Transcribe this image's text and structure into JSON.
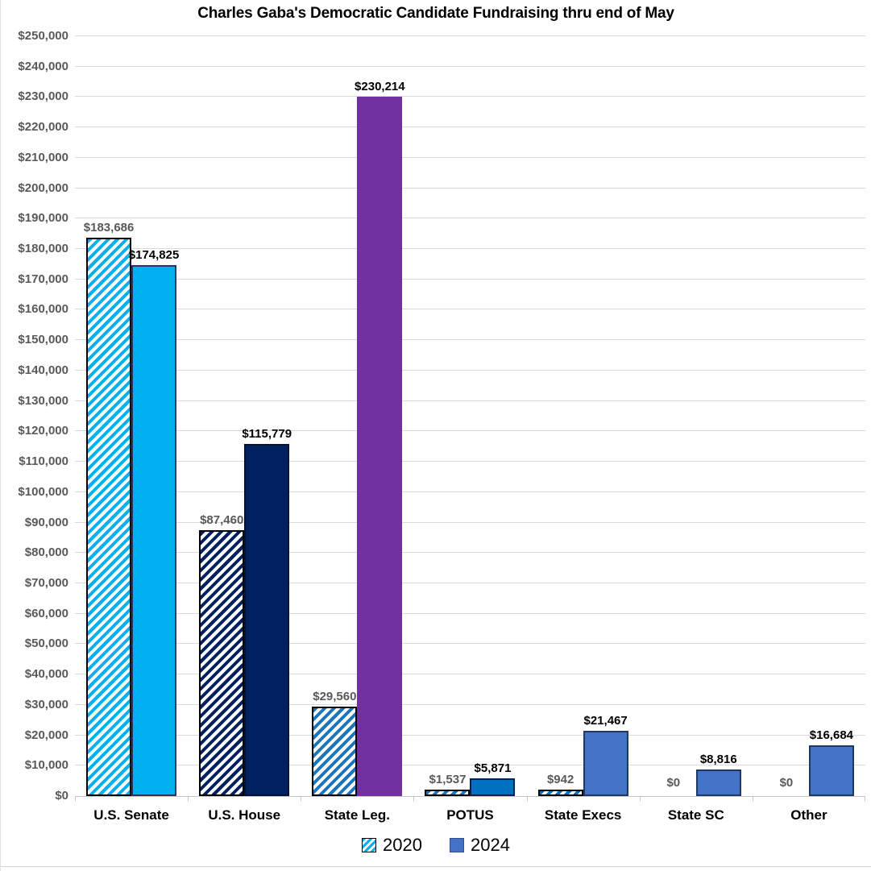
{
  "chart_data": {
    "type": "bar",
    "title": "Charles Gaba's Democratic Candidate Fundraising thru end of May",
    "categories": [
      "U.S. Senate",
      "U.S. House",
      "State Leg.",
      "POTUS",
      "State Execs",
      "State SC",
      "Other"
    ],
    "series": [
      {
        "name": "2020",
        "style": "hatched",
        "values": [
          183686,
          87460,
          29560,
          1537,
          942,
          0,
          0
        ],
        "labels": [
          "$183,686",
          "$87,460",
          "$29,560",
          "$1,537",
          "$942",
          "$0",
          "$0"
        ],
        "hatch_colors": [
          "#00b0f0",
          "#002060",
          "#1b75bc",
          "#1b75bc",
          "#0070c0",
          "#0070c0",
          "#0070c0"
        ],
        "border_color": "#000000",
        "label_color": "#595959"
      },
      {
        "name": "2024",
        "style": "solid",
        "values": [
          174825,
          115779,
          230214,
          5871,
          21467,
          8816,
          16684
        ],
        "labels": [
          "$174,825",
          "$115,779",
          "$230,214",
          "$5,871",
          "$21,467",
          "$8,816",
          "$16,684"
        ],
        "fill_colors": [
          "#00b0f0",
          "#002060",
          "#7030a0",
          "#0070c0",
          "#4472c4",
          "#4472c4",
          "#4472c4"
        ],
        "border_colors": [
          "#1f3864",
          "#001238",
          "#7030a0",
          "#002060",
          "#1f3864",
          "#1f3864",
          "#1f3864"
        ],
        "label_color": "#000000"
      }
    ],
    "y_axis": {
      "min": 0,
      "max": 250000,
      "step": 10000,
      "tick_labels": [
        "$0",
        "$10,000",
        "$20,000",
        "$30,000",
        "$40,000",
        "$50,000",
        "$60,000",
        "$70,000",
        "$80,000",
        "$90,000",
        "$100,000",
        "$110,000",
        "$120,000",
        "$130,000",
        "$140,000",
        "$150,000",
        "$160,000",
        "$170,000",
        "$180,000",
        "$190,000",
        "$200,000",
        "$210,000",
        "$220,000",
        "$230,000",
        "$240,000",
        "$250,000"
      ]
    },
    "legend": {
      "position": "bottom",
      "items": [
        {
          "label": "2020",
          "swatch": "hatched",
          "color": "#00b0f0",
          "border": "#000000"
        },
        {
          "label": "2024",
          "swatch": "solid",
          "color": "#4472c4",
          "border": "#2f528f"
        }
      ]
    },
    "grid": true
  },
  "colors": {
    "grid": "#d9d9d9",
    "axis": "#c6c6c6",
    "y_tick_label": "#595959",
    "title": "#000000",
    "background": "#ffffff"
  }
}
